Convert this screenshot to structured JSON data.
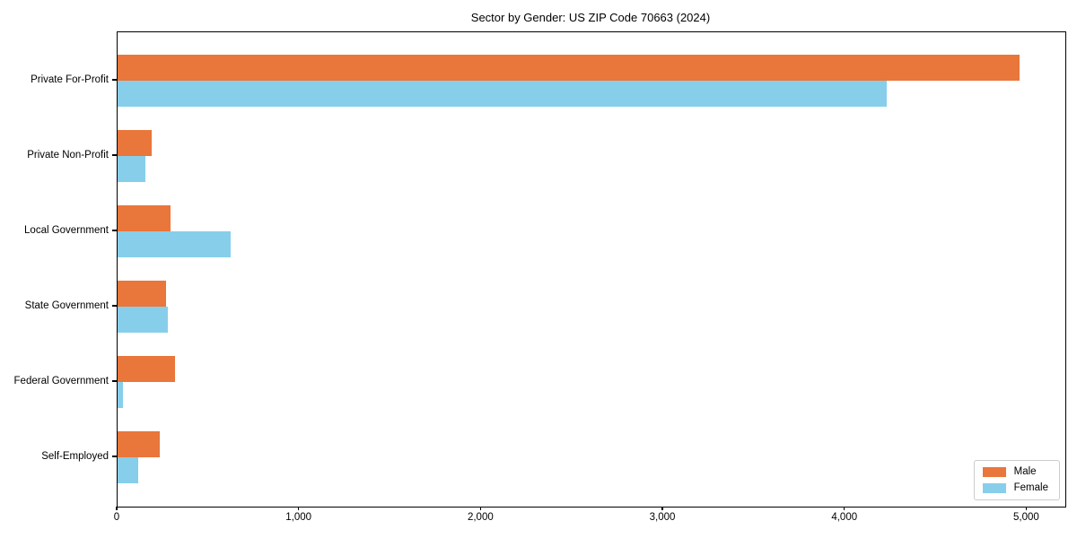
{
  "title": "Sector by Gender: US ZIP Code 70663 (2024)",
  "chart_data": {
    "type": "bar",
    "orientation": "horizontal",
    "title": "Sector by Gender: US ZIP Code 70663 (2024)",
    "categories": [
      "Private For-Profit",
      "Private Non-Profit",
      "Local Government",
      "State Government",
      "Federal Government",
      "Self-Employed"
    ],
    "series": [
      {
        "name": "Male",
        "color": "#e9763a",
        "values": [
          4960,
          185,
          290,
          265,
          315,
          230
        ]
      },
      {
        "name": "Female",
        "color": "#87ceeb",
        "values": [
          4230,
          155,
          620,
          275,
          30,
          115
        ]
      }
    ],
    "xlim": [
      0,
      5210
    ],
    "x_ticks": [
      0,
      1000,
      2000,
      3000,
      4000,
      5000
    ],
    "x_tick_labels": [
      "0",
      "1,000",
      "2,000",
      "3,000",
      "4,000",
      "5,000"
    ],
    "xlabel": "",
    "ylabel": "",
    "grid": false,
    "legend_position": "lower right"
  }
}
